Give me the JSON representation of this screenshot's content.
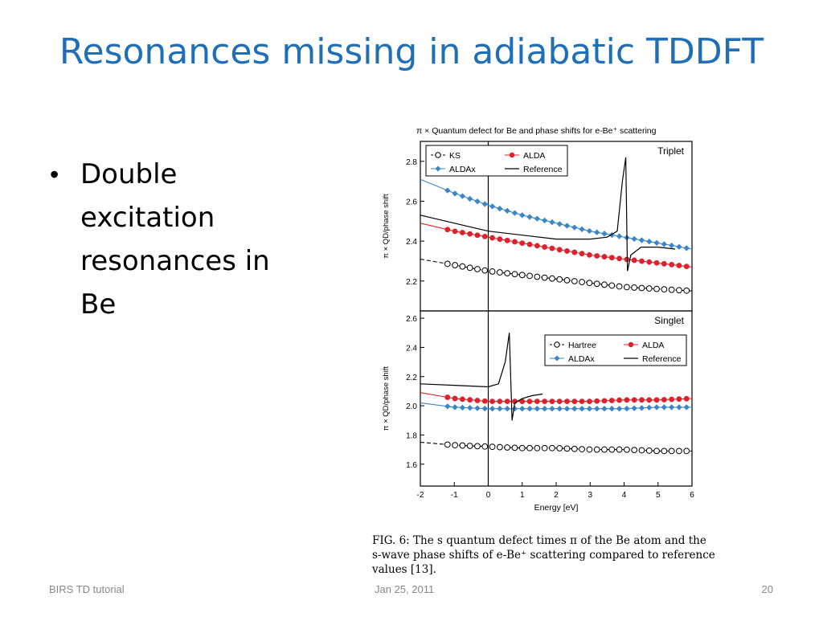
{
  "slide": {
    "title": "Resonances missing in adiabatic TDDFT",
    "bullets": [
      "Double excitation resonances in Be"
    ],
    "caption": "FIG. 6: The s quantum defect times π of the Be atom and the s-wave phase shifts of e-Be⁺ scattering compared to reference values [13].",
    "footer": {
      "left": "BIRS TD tutorial",
      "center": "Jan 25, 2011",
      "right": "20"
    }
  },
  "colors": {
    "title": "#1f6fb8",
    "alda": "#e0202a",
    "aldax": "#3a86c8",
    "ks": "#000000",
    "reference": "#000000"
  },
  "chart_data": {
    "type": "line",
    "title": "π × Quantum defect for Be and phase shifts for e-Be⁺ scattering",
    "xlabel": "Energy [eV]",
    "xlim": [
      -2,
      6
    ],
    "xticks": [
      -2,
      -1,
      0,
      1,
      2,
      3,
      4,
      5,
      6
    ],
    "panels": [
      {
        "name": "Triplet",
        "ylabel": "π × QD/phase shift",
        "ylim": [
          2.05,
          2.9
        ],
        "yticks": [
          2.2,
          2.4,
          2.6,
          2.8
        ],
        "legend": [
          "KS",
          "ALDA",
          "ALDAx",
          "Reference"
        ],
        "series": [
          {
            "name": "ALDAx",
            "x": [
              -2,
              -1,
              0,
              1,
              2,
              3,
              4,
              5,
              6
            ],
            "y": [
              2.71,
              2.64,
              2.58,
              2.53,
              2.49,
              2.45,
              2.42,
              2.39,
              2.36
            ]
          },
          {
            "name": "ALDA",
            "x": [
              -2,
              -1,
              0,
              1,
              2,
              3,
              4,
              5,
              6
            ],
            "y": [
              2.49,
              2.45,
              2.42,
              2.39,
              2.36,
              2.33,
              2.31,
              2.29,
              2.27
            ]
          },
          {
            "name": "KS",
            "x": [
              -2,
              -1,
              0,
              1,
              2,
              3,
              4,
              5,
              6
            ],
            "y": [
              2.31,
              2.28,
              2.25,
              2.23,
              2.21,
              2.19,
              2.17,
              2.16,
              2.15
            ]
          },
          {
            "name": "Reference",
            "x": [
              -2,
              -1,
              0,
              1,
              2,
              3,
              3.5,
              3.8,
              3.95,
              4.05,
              4.1,
              4.2,
              4.5,
              5.0,
              5.5
            ],
            "y": [
              2.53,
              2.49,
              2.45,
              2.43,
              2.41,
              2.41,
              2.42,
              2.45,
              2.7,
              2.82,
              2.25,
              2.33,
              2.37,
              2.37,
              2.36
            ]
          }
        ]
      },
      {
        "name": "Singlet",
        "ylabel": "π × QD/phase shift",
        "ylim": [
          1.45,
          2.65
        ],
        "yticks": [
          1.6,
          1.8,
          2.0,
          2.2,
          2.4,
          2.6
        ],
        "legend": [
          "Hartree",
          "ALDA",
          "ALDAx",
          "Reference"
        ],
        "series": [
          {
            "name": "ALDA",
            "x": [
              -2,
              -1,
              0,
              1,
              2,
              3,
              4,
              5,
              6
            ],
            "y": [
              2.09,
              2.05,
              2.03,
              2.03,
              2.03,
              2.03,
              2.04,
              2.04,
              2.05
            ]
          },
          {
            "name": "ALDAx",
            "x": [
              -2,
              -1,
              0,
              1,
              2,
              3,
              4,
              5,
              6
            ],
            "y": [
              2.02,
              1.99,
              1.98,
              1.98,
              1.98,
              1.98,
              1.98,
              1.99,
              1.99
            ]
          },
          {
            "name": "Hartree",
            "x": [
              -2,
              -1,
              0,
              1,
              2,
              3,
              4,
              5,
              6
            ],
            "y": [
              1.75,
              1.73,
              1.72,
              1.71,
              1.71,
              1.7,
              1.7,
              1.69,
              1.69
            ]
          },
          {
            "name": "Reference",
            "x": [
              -2,
              -1,
              0,
              0.3,
              0.5,
              0.62,
              0.7,
              0.78,
              1.0,
              1.3,
              1.6
            ],
            "y": [
              2.15,
              2.14,
              2.13,
              2.15,
              2.3,
              2.5,
              1.9,
              2.02,
              2.05,
              2.07,
              2.08
            ]
          }
        ]
      }
    ]
  }
}
